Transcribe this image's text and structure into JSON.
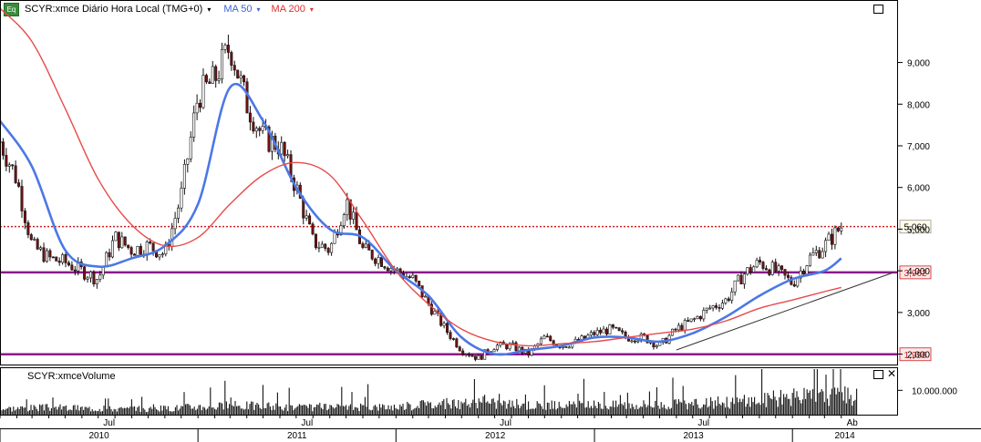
{
  "header": {
    "eq_icon": "Eq",
    "title": "SCYR:xmce Diário Hora Local (TMG+0)",
    "ma50_label": "MA 50",
    "ma200_label": "MA 200",
    "dropdown_glyph": "▾"
  },
  "volume_panel": {
    "title": "SCYR:xmceVolume",
    "tick_label": "10.000.000"
  },
  "colors": {
    "ma50": "#4b78e6",
    "ma200": "#e84a4a",
    "hline": "#8b1a8b",
    "last_price": "#cc2222",
    "candle": "#111111"
  },
  "chart_data": {
    "type": "line",
    "title": "SCYR:xmce Diário Hora Local (TMG+0)",
    "y_ticks": [
      "9,000",
      "8,000",
      "7,000",
      "6,000",
      "5,000",
      "4,000",
      "3,000",
      "2,000"
    ],
    "ylim": [
      1.75,
      10.5
    ],
    "x_top_labels": [
      "Jul",
      "Jul",
      "Jul",
      "Jul",
      "Ab"
    ],
    "x_year_labels": [
      "2010",
      "2011",
      "2012",
      "2013",
      "2014"
    ],
    "x_range": [
      "2010-01",
      "2014-04"
    ],
    "price_series": {
      "name": "SCYR:xmce",
      "x": [
        "2010-01",
        "2010-02",
        "2010-03",
        "2010-04",
        "2010-05",
        "2010-06",
        "2010-07",
        "2010-08",
        "2010-09",
        "2010-10",
        "2010-11",
        "2010-12",
        "2011-01",
        "2011-02",
        "2011-03",
        "2011-04",
        "2011-05",
        "2011-06",
        "2011-07",
        "2011-08",
        "2011-09",
        "2011-10",
        "2011-11",
        "2011-12",
        "2012-01",
        "2012-02",
        "2012-03",
        "2012-04",
        "2012-05",
        "2012-06",
        "2012-07",
        "2012-08",
        "2012-09",
        "2012-10",
        "2012-11",
        "2012-12",
        "2013-01",
        "2013-02",
        "2013-03",
        "2013-04",
        "2013-05",
        "2013-06",
        "2013-07",
        "2013-08",
        "2013-09",
        "2013-10",
        "2013-11",
        "2013-12",
        "2014-01",
        "2014-02",
        "2014-03",
        "2014-04"
      ],
      "values": [
        7.1,
        6.2,
        4.6,
        4.3,
        4.2,
        4.0,
        3.8,
        4.8,
        4.5,
        4.6,
        4.4,
        5.8,
        8.2,
        8.6,
        9.4,
        8.0,
        7.2,
        7.0,
        6.0,
        4.7,
        4.5,
        5.7,
        4.5,
        4.3,
        4.0,
        3.8,
        3.2,
        2.6,
        2.1,
        1.9,
        2.2,
        2.2,
        2.0,
        2.4,
        2.2,
        2.3,
        2.5,
        2.6,
        2.4,
        2.4,
        2.2,
        2.6,
        2.8,
        3.1,
        3.3,
        3.9,
        4.2,
        4.0,
        3.7,
        4.3,
        4.6,
        5.06
      ]
    },
    "series": [
      {
        "name": "MA 50",
        "x": [
          "2010-01",
          "2010-03",
          "2010-05",
          "2010-07",
          "2010-09",
          "2010-11",
          "2011-01",
          "2011-03",
          "2011-05",
          "2011-07",
          "2011-09",
          "2011-11",
          "2012-01",
          "2012-03",
          "2012-05",
          "2012-07",
          "2012-09",
          "2012-11",
          "2013-01",
          "2013-03",
          "2013-05",
          "2013-07",
          "2013-09",
          "2013-11",
          "2014-01",
          "2014-03",
          "2014-04"
        ],
        "values": [
          7.6,
          6.5,
          4.5,
          4.1,
          4.3,
          4.6,
          5.6,
          8.4,
          7.6,
          6.0,
          5.0,
          4.8,
          4.0,
          3.4,
          2.4,
          2.0,
          2.1,
          2.2,
          2.4,
          2.4,
          2.3,
          2.5,
          2.9,
          3.4,
          3.8,
          4.0,
          4.3
        ]
      },
      {
        "name": "MA 200",
        "x": [
          "2010-01",
          "2010-03",
          "2010-05",
          "2010-07",
          "2010-09",
          "2010-11",
          "2011-01",
          "2011-03",
          "2011-05",
          "2011-07",
          "2011-09",
          "2011-11",
          "2012-01",
          "2012-03",
          "2012-05",
          "2012-07",
          "2012-09",
          "2012-11",
          "2013-01",
          "2013-03",
          "2013-05",
          "2013-07",
          "2013-09",
          "2013-11",
          "2014-01",
          "2014-03",
          "2014-04"
        ],
        "values": [
          10.3,
          9.5,
          7.9,
          6.2,
          5.1,
          4.6,
          4.8,
          5.6,
          6.3,
          6.6,
          6.3,
          5.2,
          4.0,
          3.2,
          2.6,
          2.3,
          2.2,
          2.25,
          2.3,
          2.4,
          2.5,
          2.6,
          2.8,
          3.1,
          3.3,
          3.5,
          3.6
        ]
      }
    ],
    "horizontal_lines": [
      {
        "label": "3,962",
        "value": 3.962
      },
      {
        "label": "1,996",
        "value": 1.996
      }
    ],
    "last_price": {
      "label": "5,060",
      "value": 5.06
    },
    "trendline": {
      "x": [
        "2013-06",
        "2014-04"
      ],
      "values": [
        2.1,
        3.96
      ]
    },
    "volume": {
      "ylim": [
        0,
        18000000
      ],
      "tick": 10000000,
      "x": [
        "2010-01",
        "2010-04",
        "2010-07",
        "2010-10",
        "2011-01",
        "2011-04",
        "2011-07",
        "2011-10",
        "2012-01",
        "2012-04",
        "2012-07",
        "2012-10",
        "2013-01",
        "2013-04",
        "2013-07",
        "2013-10",
        "2014-01",
        "2014-03"
      ],
      "values": [
        3000000,
        3500000,
        3000000,
        2500000,
        4000000,
        4500000,
        3500000,
        3500000,
        4000000,
        5000000,
        5500000,
        4500000,
        4500000,
        5000000,
        5000000,
        6500000,
        8500000,
        9000000
      ]
    }
  }
}
